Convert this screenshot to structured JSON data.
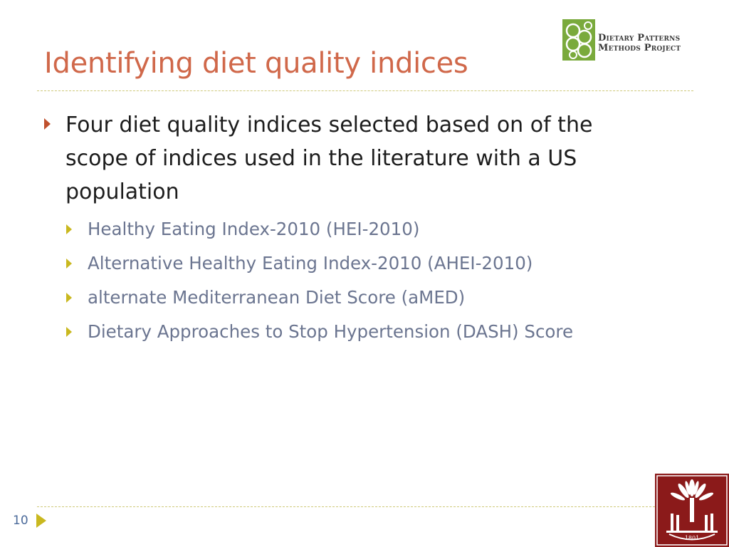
{
  "slide": {
    "title": "Identifying diet quality indices",
    "logo_text_line1": "Dietary Patterns",
    "logo_text_line2": "Methods Project",
    "bullet_main": "Four diet quality indices selected based on of the scope of indices used in the literature with a US population",
    "sub_bullets": [
      "Healthy Eating Index-2010 (HEI-2010)",
      "Alternative Healthy Eating Index-2010 (AHEI-2010)",
      "alternate Mediterranean Diet Score (aMED)",
      "Dietary Approaches to Stop Hypertension (DASH) Score"
    ],
    "page_number": "10",
    "usc_seal_year": "1801"
  },
  "colors": {
    "title": "#d0684a",
    "main_text": "#1d1d1d",
    "sub_text": "#6b7590",
    "main_arrow": "#c0502d",
    "sub_arrow": "#c9b81f",
    "rule": "#cfc97a",
    "usc_garnet": "#8b1a1a",
    "dpmp_green": "#7aaa3c"
  },
  "icons": {
    "dpmp_logo": "dietary-patterns-rings-logo",
    "usc_logo": "palmetto-tree-seal",
    "main_arrow": "triangle-right",
    "sub_arrow": "triangle-right",
    "nav_arrow": "triangle-right"
  }
}
